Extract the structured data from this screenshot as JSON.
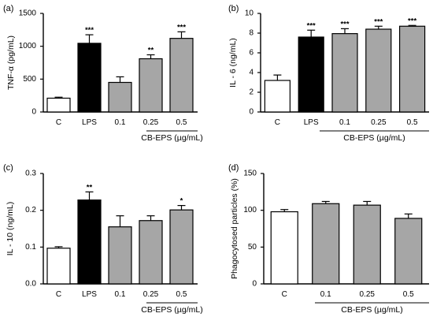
{
  "chart_data": [
    {
      "type": "bar",
      "panel_label": "(a)",
      "ylabel": "TNF-α (pg/mL)",
      "ylim": [
        0,
        1500
      ],
      "yticks": [
        0,
        500,
        1000,
        1500
      ],
      "categories": [
        "C",
        "LPS",
        "0.1",
        "0.25",
        "0.5"
      ],
      "values": [
        210,
        1045,
        450,
        810,
        1120
      ],
      "errors": [
        15,
        130,
        85,
        60,
        100
      ],
      "significance": [
        "",
        "***",
        "",
        "**",
        "***"
      ],
      "bar_fills": [
        "#ffffff",
        "#000000",
        "#a6a6a6",
        "#a6a6a6",
        "#a6a6a6"
      ],
      "group_label": "CB-EPS (µg/mL)"
    },
    {
      "type": "bar",
      "panel_label": "(b)",
      "ylabel": "IL - 6 (ng/mL)",
      "ylim": [
        0,
        10
      ],
      "yticks": [
        0,
        2,
        4,
        6,
        8,
        10
      ],
      "categories": [
        "C",
        "LPS",
        "0.1",
        "0.25",
        "0.5"
      ],
      "values": [
        3.2,
        7.6,
        7.95,
        8.4,
        8.7
      ],
      "errors": [
        0.55,
        0.7,
        0.5,
        0.3,
        0.08
      ],
      "significance": [
        "",
        "***",
        "***",
        "***",
        "***"
      ],
      "bar_fills": [
        "#ffffff",
        "#000000",
        "#a6a6a6",
        "#a6a6a6",
        "#a6a6a6"
      ],
      "group_label": "CB-EPS (µg/mL)"
    },
    {
      "type": "bar",
      "panel_label": "(c)",
      "ylabel": "IL - 10 (ng/mL)",
      "ylim": [
        0,
        0.3
      ],
      "yticks": [
        0.0,
        0.1,
        0.2,
        0.3
      ],
      "ytick_labels": [
        "0.0",
        "0.1",
        "0.2",
        "0.3"
      ],
      "categories": [
        "C",
        "LPS",
        "0.1",
        "0.25",
        "0.5"
      ],
      "values": [
        0.097,
        0.228,
        0.155,
        0.172,
        0.201
      ],
      "errors": [
        0.004,
        0.022,
        0.03,
        0.013,
        0.012
      ],
      "significance": [
        "",
        "**",
        "",
        "",
        "*"
      ],
      "bar_fills": [
        "#ffffff",
        "#000000",
        "#a6a6a6",
        "#a6a6a6",
        "#a6a6a6"
      ],
      "group_label": "CB-EPS (µg/mL)"
    },
    {
      "type": "bar",
      "panel_label": "(d)",
      "ylabel": "Phagocytosed particles (%)",
      "ylim": [
        0,
        150
      ],
      "yticks": [
        0,
        50,
        100,
        150
      ],
      "categories": [
        "C",
        "0.1",
        "0.25",
        "0.5"
      ],
      "values": [
        98,
        109,
        107,
        89
      ],
      "errors": [
        3,
        3,
        5,
        6
      ],
      "significance": [
        "",
        "",
        "",
        ""
      ],
      "bar_fills": [
        "#ffffff",
        "#a6a6a6",
        "#a6a6a6",
        "#a6a6a6"
      ],
      "group_label": "CB-EPS (µg/mL)"
    }
  ]
}
